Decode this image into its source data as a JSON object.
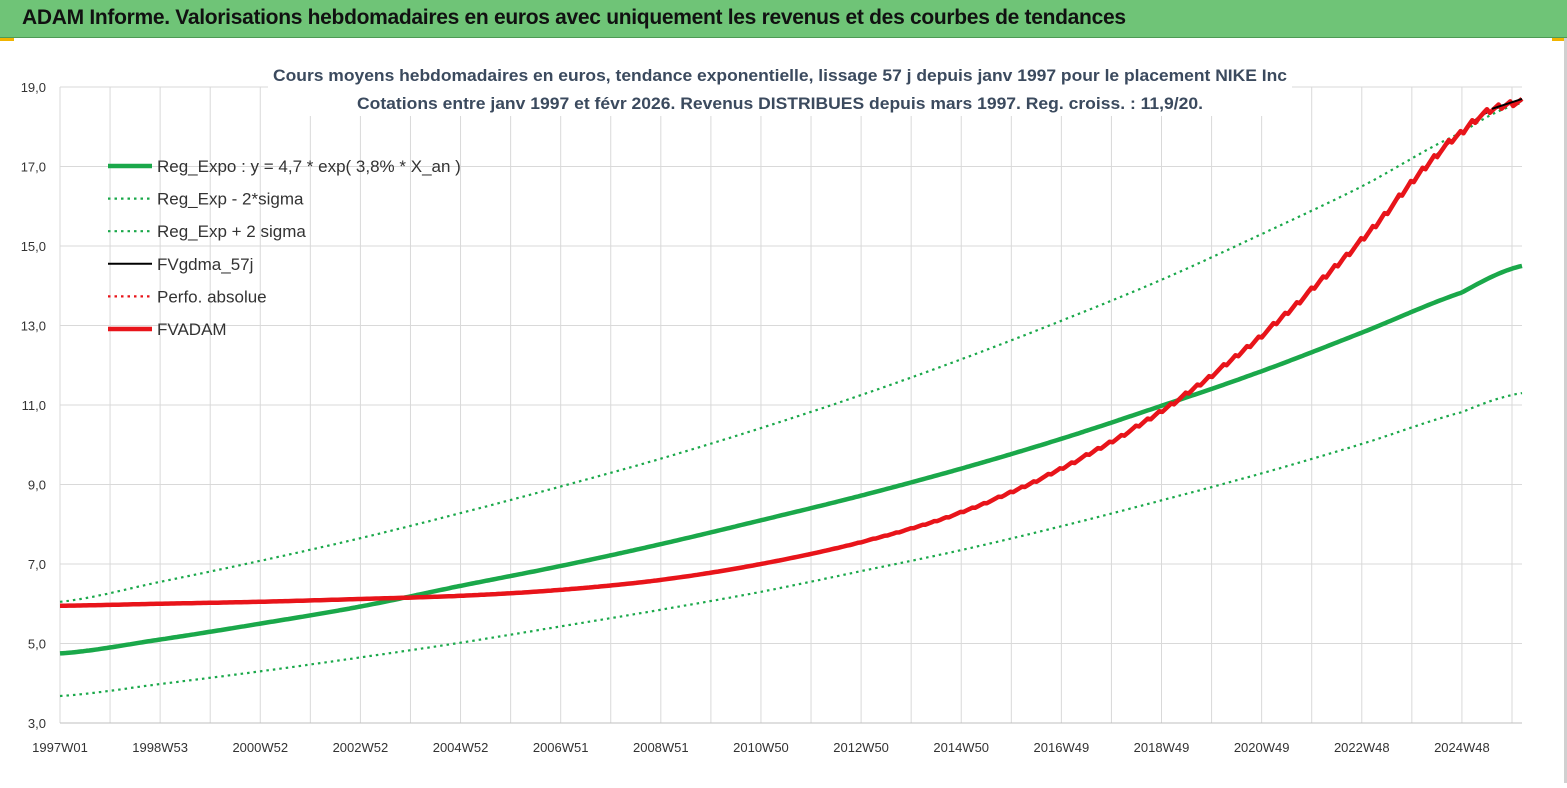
{
  "banner": {
    "title": "ADAM Informe. Valorisations hebdomadaires en euros avec uniquement les revenus et des courbes de tendances"
  },
  "colors": {
    "banner_bg": "#6fc477",
    "green": "#1aa84a",
    "red": "#e8141a",
    "black": "#000000",
    "grid": "#d9d9d9"
  },
  "chart_data": {
    "type": "line",
    "title": "Cours moyens hebdomadaires en euros, tendance exponentielle, lissage 57 j depuis janv 1997 pour le placement NIKE Inc",
    "subtitle": "Cotations entre janv 1997 et févr 2026. Revenus DISTRIBUES depuis mars 1997. Reg. croiss. : 11,9/20.",
    "xlabel": "",
    "ylabel": "",
    "xlim": [
      1997.0,
      2026.2
    ],
    "ylim": [
      3.0,
      19.0
    ],
    "y_ticks": [
      "3,0",
      "5,0",
      "7,0",
      "9,0",
      "11,0",
      "13,0",
      "15,0",
      "17,0",
      "19,0"
    ],
    "y_tick_values": [
      3,
      5,
      7,
      9,
      11,
      13,
      15,
      17,
      19
    ],
    "x_tick_labels": [
      "1997W01",
      "1998W53",
      "2000W52",
      "2002W52",
      "2004W52",
      "2006W51",
      "2008W51",
      "2010W50",
      "2012W50",
      "2014W50",
      "2016W49",
      "2018W49",
      "2020W49",
      "2022W48",
      "2024W48"
    ],
    "x_tick_values": [
      1997.0,
      1999.0,
      2001.0,
      2003.0,
      2005.0,
      2007.0,
      2009.0,
      2011.0,
      2013.0,
      2015.0,
      2017.0,
      2019.0,
      2021.0,
      2023.0,
      2025.0
    ],
    "grid": true,
    "legend_position": "top-left",
    "series": [
      {
        "name": "Reg_Expo : y = 4,7 * exp( 3,8% *  X_an )",
        "style": "solid-thick",
        "color": "#1aa84a",
        "x": [
          1997,
          1999,
          2001,
          2003,
          2005,
          2007,
          2009,
          2011,
          2013,
          2015,
          2017,
          2019,
          2021,
          2023,
          2025,
          2026.2
        ],
        "y": [
          4.75,
          5.1,
          5.5,
          5.93,
          6.45,
          6.95,
          7.5,
          8.1,
          8.72,
          9.4,
          10.15,
          10.98,
          11.85,
          12.82,
          13.83,
          14.5
        ]
      },
      {
        "name": "Reg_Exp - 2*sigma",
        "style": "dotted",
        "color": "#1aa84a",
        "x": [
          1997,
          1999,
          2001,
          2003,
          2005,
          2007,
          2009,
          2011,
          2013,
          2015,
          2017,
          2019,
          2021,
          2023,
          2025,
          2026.2
        ],
        "y": [
          3.68,
          3.98,
          4.3,
          4.65,
          5.02,
          5.43,
          5.85,
          6.3,
          6.82,
          7.35,
          7.95,
          8.6,
          9.28,
          10.02,
          10.82,
          11.3
        ]
      },
      {
        "name": "Reg_Exp + 2 sigma",
        "style": "dotted",
        "color": "#1aa84a",
        "x": [
          1997,
          1999,
          2001,
          2003,
          2005,
          2007,
          2009,
          2011,
          2013,
          2015,
          2017,
          2019,
          2021,
          2023,
          2025,
          2026.2
        ],
        "y": [
          6.05,
          6.55,
          7.08,
          7.65,
          8.28,
          8.95,
          9.65,
          10.42,
          11.25,
          12.15,
          13.12,
          14.15,
          15.3,
          16.5,
          17.85,
          18.6
        ]
      },
      {
        "name": "FVgdma_57j",
        "style": "solid",
        "color": "#000000",
        "x": [
          1997,
          1999,
          2001,
          2003,
          2005,
          2007,
          2009,
          2011,
          2013,
          2015,
          2017,
          2019,
          2021,
          2023,
          2025,
          2026.2
        ],
        "y": [
          5.95,
          6.0,
          6.05,
          6.12,
          6.2,
          6.35,
          6.6,
          7.0,
          7.55,
          8.3,
          9.4,
          10.85,
          12.75,
          15.15,
          17.85,
          18.65
        ]
      },
      {
        "name": "Perfo. absolue",
        "style": "dotted",
        "color": "#e8141a",
        "x": [
          1997,
          1999,
          2001,
          2003,
          2005,
          2007,
          2009,
          2011,
          2013,
          2015,
          2017,
          2019,
          2021,
          2023,
          2025,
          2026.2
        ],
        "y": [
          5.95,
          6.0,
          6.05,
          6.12,
          6.2,
          6.35,
          6.6,
          7.0,
          7.55,
          8.3,
          9.4,
          10.85,
          12.75,
          15.15,
          17.85,
          18.65
        ]
      },
      {
        "name": "FVADAM",
        "style": "solid-thick",
        "color": "#e8141a",
        "x": [
          1997,
          1999,
          2001,
          2003,
          2005,
          2007,
          2009,
          2011,
          2013,
          2015,
          2017,
          2019,
          2021,
          2023,
          2025,
          2026.2
        ],
        "y": [
          5.95,
          6.0,
          6.05,
          6.12,
          6.2,
          6.35,
          6.6,
          7.0,
          7.55,
          8.3,
          9.4,
          10.85,
          12.75,
          15.15,
          17.85,
          18.65
        ]
      }
    ]
  }
}
